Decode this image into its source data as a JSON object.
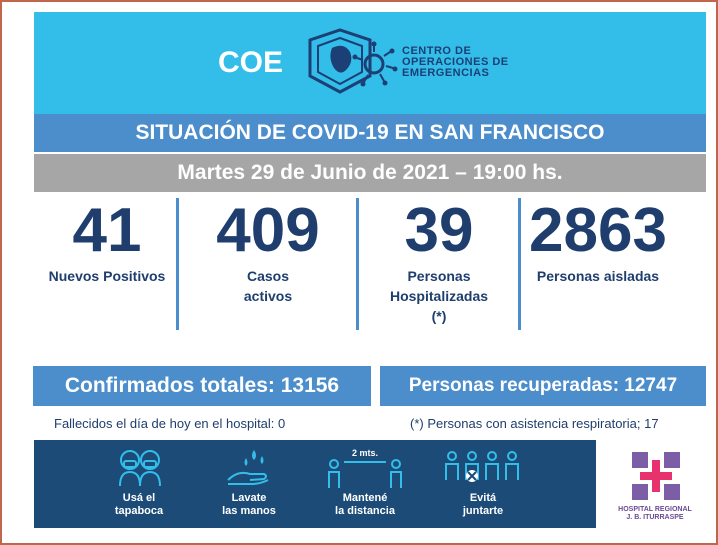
{
  "header": {
    "logo_text": "COE",
    "org_line1": "CENTRO DE",
    "org_line2": "OPERACIONES DE",
    "org_line3": "EMERGENCIAS"
  },
  "title": "SITUACIÓN DE COVID-19 EN SAN FRANCISCO",
  "date": "Martes 29 de Junio de 2021 – 19:00 hs.",
  "stats": [
    {
      "value": "41",
      "label_l1": "Nuevos Positivos",
      "label_l2": "",
      "label_l3": ""
    },
    {
      "value": "409",
      "label_l1": "Casos",
      "label_l2": "activos",
      "label_l3": ""
    },
    {
      "value": "39",
      "label_l1": "Personas",
      "label_l2": "Hospitalizadas",
      "label_l3": "(*)"
    },
    {
      "value": "2863",
      "label_l1": "Personas aisladas",
      "label_l2": "",
      "label_l3": ""
    }
  ],
  "totals": {
    "confirmados": "Confirmados totales: 13156",
    "recuperadas": "Personas recuperadas: 12747"
  },
  "notes": {
    "fallecidos": "Fallecidos el día de hoy en el hospital:  0",
    "respiratoria": "(*) Personas con asistencia respiratoria; 17"
  },
  "tips": [
    {
      "l1": "Usá el",
      "l2": "tapaboca",
      "icon": "mask-icon"
    },
    {
      "l1": "Lavate",
      "l2": "las manos",
      "icon": "hand-wash-icon"
    },
    {
      "l1": "Mantené",
      "l2": "la distancia",
      "icon": "distance-icon",
      "extra": "2 mts."
    },
    {
      "l1": "Evitá",
      "l2": "juntarte",
      "icon": "crowd-icon"
    }
  ],
  "hospital": {
    "line1": "HOSPITAL REGIONAL",
    "line2": "J. B. ITURRASPE"
  },
  "colors": {
    "header_bg": "#33bde9",
    "band_blue": "#4c8dcc",
    "band_gray": "#a6a6a6",
    "navy": "#1f3e6e",
    "footer_bg": "#1c4b78",
    "frame": "#c0664c"
  }
}
